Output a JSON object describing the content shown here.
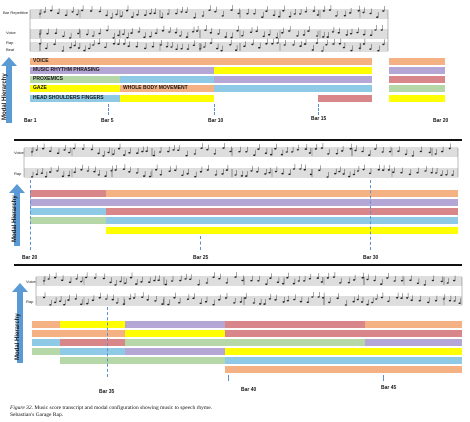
{
  "colors": {
    "voice": "#f4b183",
    "rhythm": "#b4a7d6",
    "proxemics": "#d9868b",
    "gaze": "#b6d7a8",
    "body": "#8ecae6",
    "fingers": "#ffff00",
    "arrow": "#5b9bd5",
    "dash": "#5b8fd1"
  },
  "panels": [
    {
      "axis_label": "Modal Hierarchy",
      "score_label_top": "Bar Repetitive",
      "score_labels": [
        "Voice",
        "Rap",
        "Beat"
      ],
      "modes": [
        "VOICE",
        "MUSIC RHYTHM PHRASING",
        "PROXEMICS",
        "GAZE",
        "HEAD SHOULDERS FINGERS"
      ],
      "overlay_label": "WHOLE BODY MOVEMENT",
      "ticks": [
        "Bar 1",
        "Bar 5",
        "Bar 10",
        "Bar 15",
        "Bar 20"
      ]
    },
    {
      "axis_label": "Modal Hierarchy",
      "score_labels": [
        "Voice",
        "Rap"
      ],
      "ticks": [
        "Bar 20",
        "Bar 25",
        "Bar 30"
      ]
    },
    {
      "axis_label": "Modal Hierarchy",
      "score_labels": [
        "Voice",
        "Rap"
      ],
      "ticks": [
        "Bar 35",
        "Bar 40",
        "Bar 45"
      ]
    }
  ],
  "caption": {
    "label": "Figure 32.",
    "text": " Music score transcript and modal configuration showing music to speech rhyme.",
    "line2": "Sebastian's  Garage Rap."
  }
}
